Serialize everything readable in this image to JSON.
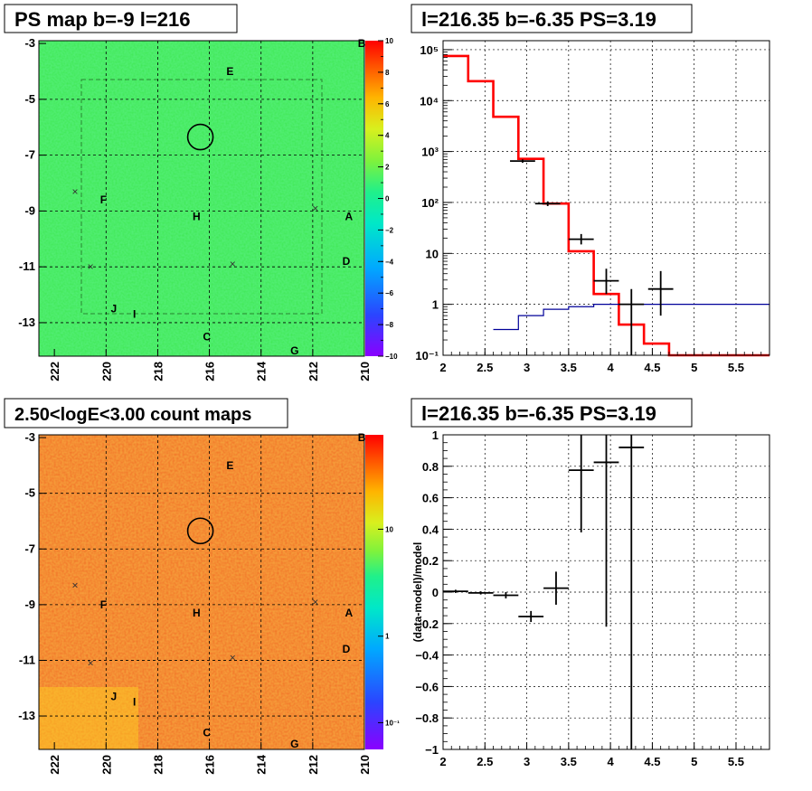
{
  "colors": {
    "map_green": "#38e84a",
    "map_orange": "#f06a22",
    "model_red": "#ff0000",
    "bg_blue": "#000099",
    "data_black": "#000000",
    "grid": "#000000"
  },
  "panels": {
    "ps_map": {
      "title": "PS map b=-9 l=216",
      "x_ticks": [
        "222",
        "220",
        "218",
        "216",
        "214",
        "212",
        "210"
      ],
      "y_ticks": [
        "-3",
        "-5",
        "-7",
        "-9",
        "-11",
        "-13"
      ],
      "colorbar_ticks": [
        "10",
        "8",
        "6",
        "4",
        "2",
        "0",
        "−2",
        "−4",
        "−6",
        "−8",
        "−10"
      ],
      "colorbar_scale": "linear",
      "colorbar_range": [
        -10,
        10
      ],
      "sources": [
        "B",
        "E",
        "F",
        "H",
        "A",
        "D",
        "J",
        "I",
        "C",
        "G"
      ],
      "marker_symbol": "×"
    },
    "count_map": {
      "title": "2.50<logE<3.00 count maps",
      "x_ticks": [
        "222",
        "220",
        "218",
        "216",
        "214",
        "212",
        "210"
      ],
      "y_ticks": [
        "-3",
        "-5",
        "-7",
        "-9",
        "-11",
        "-13"
      ],
      "colorbar_ticks": [
        "10",
        "1",
        "10⁻¹"
      ],
      "colorbar_scale": "log",
      "sources": [
        "B",
        "E",
        "F",
        "H",
        "A",
        "D",
        "J",
        "I",
        "C",
        "G"
      ],
      "marker_symbol": "×"
    },
    "spectrum": {
      "title": "l=216.35 b=-6.35 PS=3.19",
      "x_ticks": [
        "2",
        "2.5",
        "3",
        "3.5",
        "4",
        "4.5",
        "5",
        "5.5"
      ],
      "y_ticks": [
        "10⁻¹",
        "1",
        "10",
        "10²",
        "10³",
        "10⁴",
        "10⁵"
      ]
    },
    "residual": {
      "title": "l=216.35 b=-6.35 PS=3.19",
      "ylabel": "(data-model)/model",
      "x_ticks": [
        "2",
        "2.5",
        "3",
        "3.5",
        "4",
        "4.5",
        "5",
        "5.5"
      ],
      "y_ticks": [
        "1",
        "0.8",
        "0.6",
        "0.4",
        "0.2",
        "0",
        "−0.2",
        "−0.4",
        "−0.6",
        "−0.8",
        "−1"
      ]
    }
  },
  "chart_data": [
    {
      "type": "heatmap",
      "title": "PS map b=-9 l=216",
      "xlim": [
        222.6,
        210
      ],
      "ylim": [
        -14.2,
        -2.9
      ],
      "zlim": [
        -10,
        10
      ],
      "grid": true,
      "sources": [
        {
          "label": "B",
          "l": 210.1,
          "b": -3.0
        },
        {
          "label": "E",
          "l": 215.2,
          "b": -4.0
        },
        {
          "label": "F",
          "l": 220.1,
          "b": -8.6
        },
        {
          "label": "H",
          "l": 216.5,
          "b": -9.2
        },
        {
          "label": "A",
          "l": 210.6,
          "b": -9.2
        },
        {
          "label": "D",
          "l": 210.7,
          "b": -10.8
        },
        {
          "label": "J",
          "l": 219.7,
          "b": -12.5
        },
        {
          "label": "I",
          "l": 218.9,
          "b": -12.7
        },
        {
          "label": "C",
          "l": 216.1,
          "b": -13.5
        },
        {
          "label": "G",
          "l": 212.7,
          "b": -14.0
        }
      ],
      "markers": [
        {
          "l": 221.2,
          "b": -8.3
        },
        {
          "l": 220.6,
          "b": -11.0
        },
        {
          "l": 215.1,
          "b": -10.9
        },
        {
          "l": 211.9,
          "b": -8.9
        }
      ],
      "circle": {
        "l": 216.35,
        "b": -6.35
      }
    },
    {
      "type": "heatmap",
      "title": "2.50<logE<3.00 count maps",
      "xlim": [
        222.6,
        210
      ],
      "ylim": [
        -14.2,
        -2.9
      ],
      "z_scale": "log",
      "grid": true,
      "sources": [
        {
          "label": "B",
          "l": 210.1,
          "b": -3.0
        },
        {
          "label": "E",
          "l": 215.2,
          "b": -4.0
        },
        {
          "label": "F",
          "l": 220.1,
          "b": -9.0
        },
        {
          "label": "H",
          "l": 216.5,
          "b": -9.3
        },
        {
          "label": "A",
          "l": 210.6,
          "b": -9.3
        },
        {
          "label": "D",
          "l": 210.7,
          "b": -10.6
        },
        {
          "label": "J",
          "l": 219.7,
          "b": -12.3
        },
        {
          "label": "I",
          "l": 218.9,
          "b": -12.5
        },
        {
          "label": "C",
          "l": 216.1,
          "b": -13.6
        },
        {
          "label": "G",
          "l": 212.7,
          "b": -14.0
        }
      ],
      "markers": [
        {
          "l": 221.2,
          "b": -8.3
        },
        {
          "l": 220.6,
          "b": -11.1
        },
        {
          "l": 215.1,
          "b": -10.9
        },
        {
          "l": 211.9,
          "b": -8.9
        }
      ],
      "circle": {
        "l": 216.35,
        "b": -6.35
      }
    },
    {
      "type": "line",
      "title": "l=216.35 b=-6.35 PS=3.19",
      "xlim": [
        2,
        5.9
      ],
      "ylim": [
        0.1,
        150000
      ],
      "y_scale": "log",
      "grid": true,
      "series": [
        {
          "kind": "step",
          "color": "#ff0000",
          "bin_edges": [
            2.0,
            2.3,
            2.6,
            2.9,
            3.2,
            3.5,
            3.8,
            4.1,
            4.4,
            4.7,
            5.9
          ],
          "values": [
            75000,
            24000,
            4800,
            720,
            95,
            11,
            1.6,
            0.4,
            0.17,
            0.1
          ]
        },
        {
          "kind": "step",
          "color": "#000099",
          "bin_edges": [
            2.6,
            2.9,
            3.2,
            3.5,
            3.8,
            5.9
          ],
          "values": [
            0.32,
            0.6,
            0.8,
            0.9,
            1.0
          ]
        },
        {
          "kind": "errorbar",
          "color": "#000000",
          "x": [
            2.95,
            3.25,
            3.65,
            3.95,
            4.25,
            4.6
          ],
          "y": [
            650,
            95,
            19,
            2.9,
            1.0,
            2.0
          ],
          "xerr": 0.15,
          "ylow": [
            600,
            85,
            15,
            1.6,
            0.1,
            0.6
          ],
          "yhigh": [
            700,
            105,
            24,
            5.0,
            2.0,
            4.5
          ]
        }
      ]
    },
    {
      "type": "scatter",
      "title": "l=216.35 b=-6.35 PS=3.19",
      "xlim": [
        2,
        5.9
      ],
      "ylim": [
        -1,
        1
      ],
      "ylabel": "(data-model)/model",
      "grid": true,
      "series": [
        {
          "kind": "errorbar",
          "color": "#000000",
          "x": [
            2.15,
            2.45,
            2.75,
            3.05,
            3.35,
            3.65,
            3.95,
            4.25
          ],
          "y": [
            0.005,
            -0.005,
            -0.02,
            -0.155,
            0.025,
            0.775,
            0.825,
            0.92
          ],
          "xerr": 0.15,
          "ylow": [
            -0.005,
            -0.015,
            -0.04,
            -0.19,
            -0.08,
            0.38,
            -0.22,
            -1.0
          ],
          "yhigh": [
            0.015,
            0.005,
            0.0,
            -0.12,
            0.13,
            1.0,
            1.0,
            1.0
          ]
        }
      ]
    }
  ]
}
